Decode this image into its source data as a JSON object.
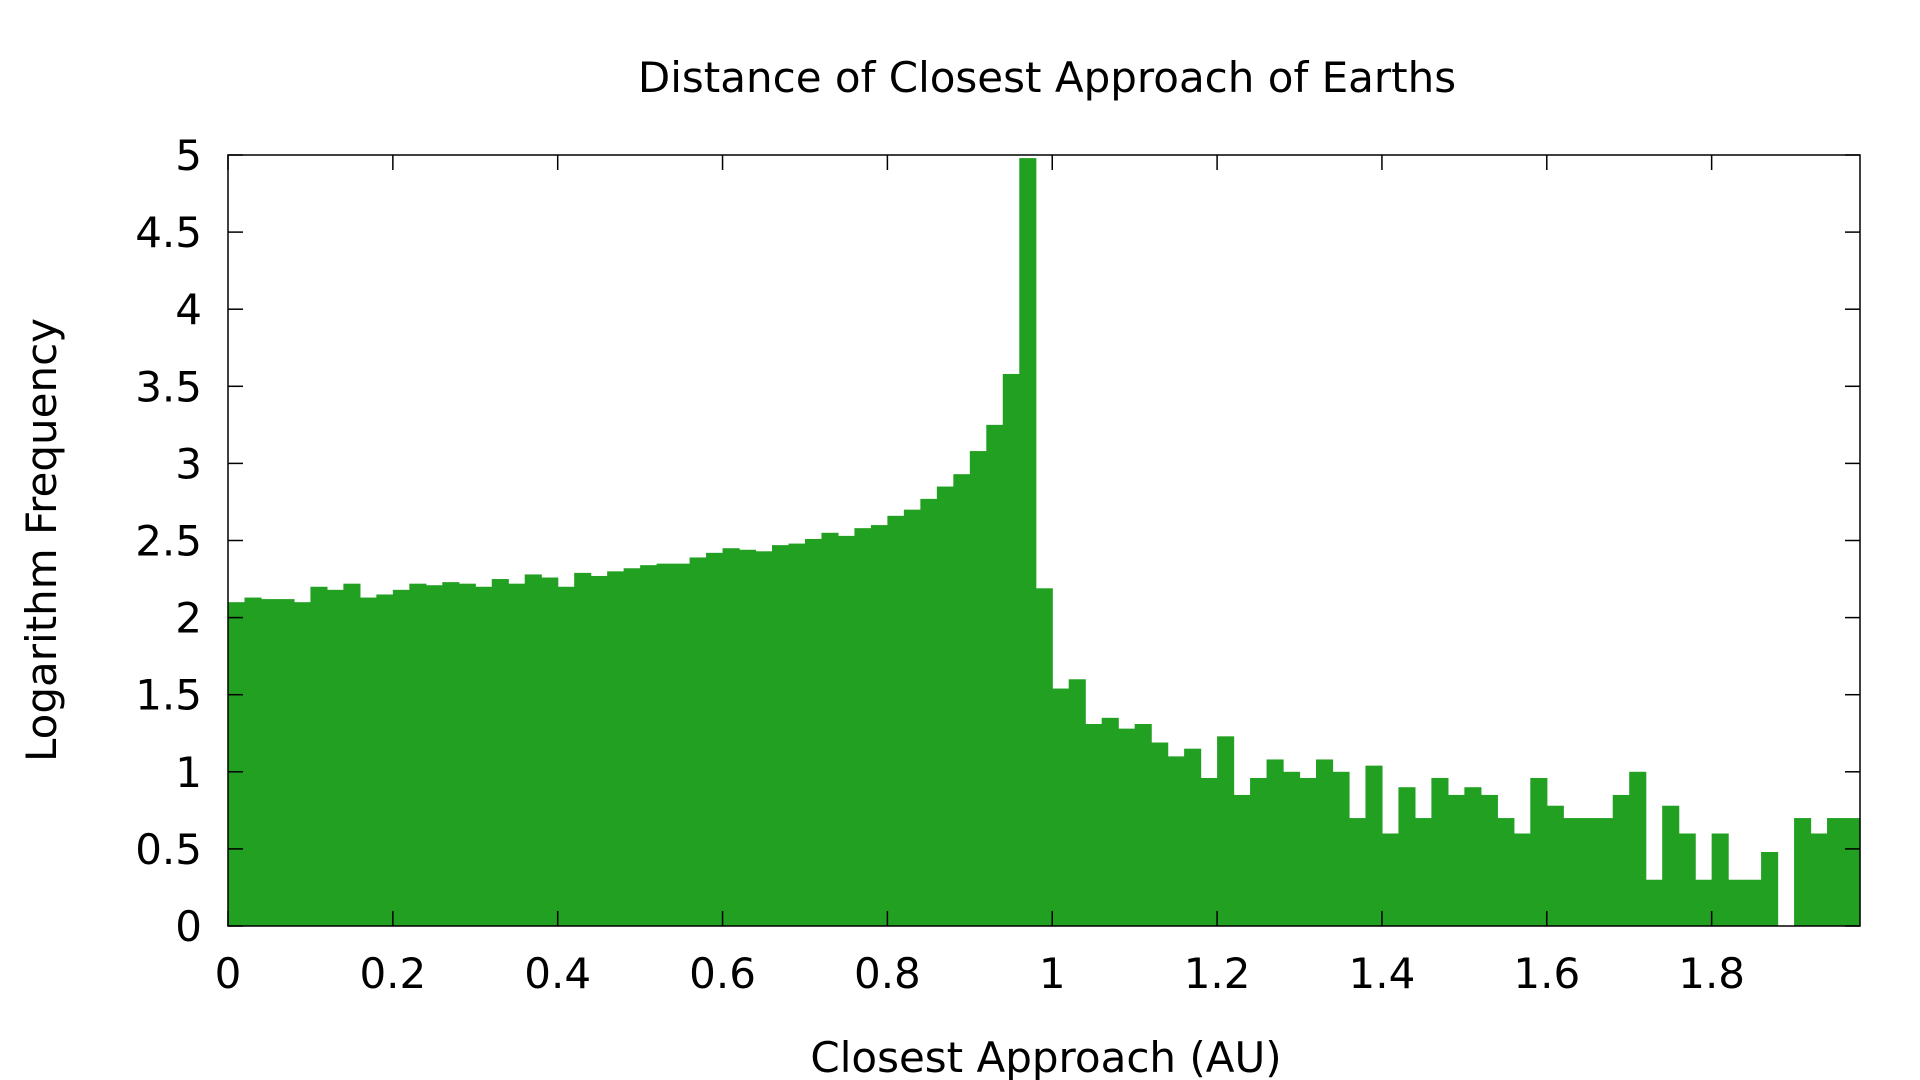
{
  "chart_data": {
    "type": "bar",
    "title": "Distance of Closest Approach of Earths",
    "xlabel": "Closest Approach (AU)",
    "ylabel": "Logarithm Frequency",
    "xlim": [
      0,
      1.98
    ],
    "ylim": [
      0,
      5
    ],
    "bin_width": 0.02,
    "bar_color": "#22a022",
    "grid": false,
    "legend": "none",
    "x_ticks": [
      "0",
      "0.2",
      "0.4",
      "0.6",
      "0.8",
      "1",
      "1.2",
      "1.4",
      "1.6",
      "1.8"
    ],
    "y_ticks": [
      "0",
      "0.5",
      "1",
      "1.5",
      "2",
      "2.5",
      "3",
      "3.5",
      "4",
      "4.5",
      "5"
    ],
    "bin_starts": [
      0,
      0.02,
      0.04,
      0.06,
      0.08,
      0.1,
      0.12,
      0.14,
      0.16,
      0.18,
      0.2,
      0.22,
      0.24,
      0.26,
      0.28,
      0.3,
      0.32,
      0.34,
      0.36,
      0.38,
      0.4,
      0.42,
      0.44,
      0.46,
      0.48,
      0.5,
      0.52,
      0.54,
      0.56,
      0.58,
      0.6,
      0.62,
      0.64,
      0.66,
      0.68,
      0.7,
      0.72,
      0.74,
      0.76,
      0.78,
      0.8,
      0.82,
      0.84,
      0.86,
      0.88,
      0.9,
      0.92,
      0.94,
      0.96,
      0.98,
      1.0,
      1.02,
      1.04,
      1.06,
      1.08,
      1.1,
      1.12,
      1.14,
      1.16,
      1.18,
      1.2,
      1.22,
      1.24,
      1.26,
      1.28,
      1.3,
      1.32,
      1.34,
      1.36,
      1.38,
      1.4,
      1.42,
      1.44,
      1.46,
      1.48,
      1.5,
      1.52,
      1.54,
      1.56,
      1.58,
      1.6,
      1.62,
      1.64,
      1.66,
      1.68,
      1.7,
      1.72,
      1.74,
      1.76,
      1.78,
      1.8,
      1.82,
      1.84,
      1.86,
      1.88,
      1.9,
      1.92,
      1.94,
      1.96
    ],
    "values": [
      2.1,
      2.13,
      2.12,
      2.12,
      2.1,
      2.2,
      2.18,
      2.22,
      2.13,
      2.15,
      2.18,
      2.22,
      2.21,
      2.23,
      2.22,
      2.2,
      2.25,
      2.22,
      2.28,
      2.26,
      2.2,
      2.29,
      2.27,
      2.3,
      2.32,
      2.34,
      2.35,
      2.35,
      2.39,
      2.42,
      2.45,
      2.44,
      2.43,
      2.47,
      2.48,
      2.51,
      2.55,
      2.53,
      2.58,
      2.6,
      2.66,
      2.7,
      2.77,
      2.85,
      2.93,
      3.08,
      3.25,
      3.58,
      4.98,
      2.19,
      1.54,
      1.6,
      1.31,
      1.35,
      1.28,
      1.31,
      1.19,
      1.1,
      1.15,
      0.96,
      1.23,
      0.85,
      0.96,
      1.08,
      1.0,
      0.96,
      1.08,
      1.0,
      0.7,
      1.04,
      0.6,
      0.9,
      0.7,
      0.96,
      0.85,
      0.9,
      0.85,
      0.7,
      0.6,
      0.96,
      0.78,
      0.7,
      0.7,
      0.7,
      0.85,
      1.0,
      0.3,
      0.78,
      0.6,
      0.3,
      0.6,
      0.3,
      0.3,
      0.48,
      0,
      0.7,
      0.6,
      0.7,
      0.7
    ]
  }
}
